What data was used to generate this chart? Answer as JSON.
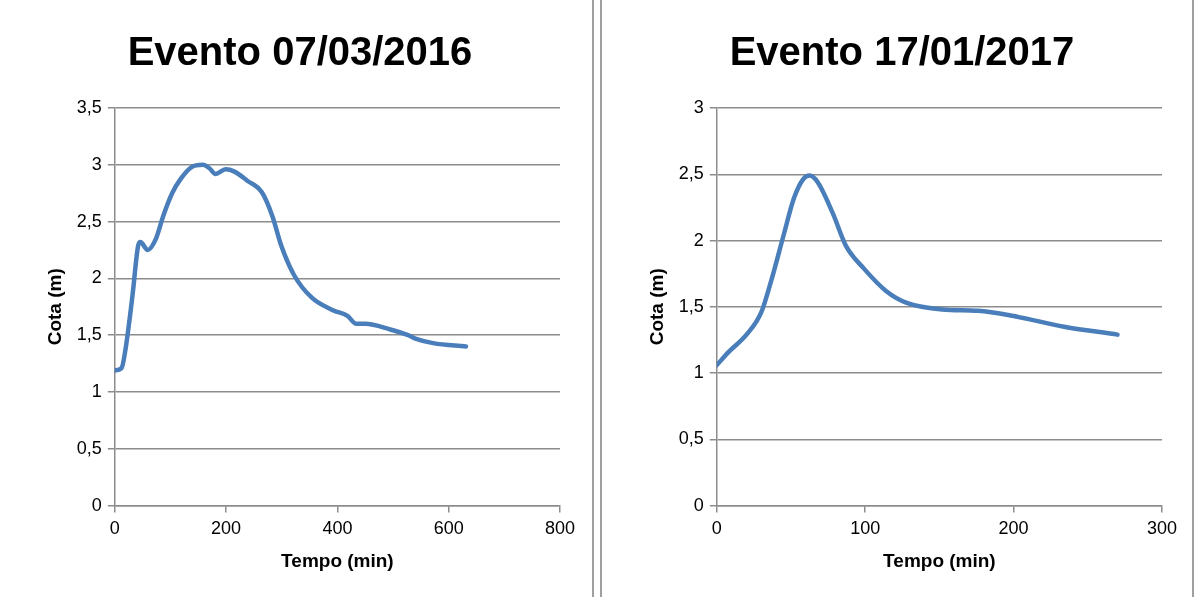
{
  "chart_data": [
    {
      "type": "line",
      "title": "Evento 07/03/2016",
      "xlabel": "Tempo (min)",
      "ylabel": "Cota (m)",
      "grid": "y",
      "marker": "none",
      "line_style": "solid",
      "legend": false,
      "xlim": [
        0,
        800
      ],
      "xticks": [
        0,
        200,
        400,
        600,
        800
      ],
      "ylim": [
        0,
        3.5
      ],
      "yticks": [
        0,
        {
          "value": 0.5,
          "label": "0,5"
        },
        1,
        {
          "value": 1.5,
          "label": "1,5"
        },
        2,
        {
          "value": 2.5,
          "label": "2,5"
        },
        3,
        {
          "value": 3.5,
          "label": "3,5"
        }
      ],
      "series": [
        {
          "color": "#4a7ebb",
          "x": [
            0,
            12,
            19,
            32,
            42,
            46,
            59,
            74,
            87,
            103,
            119,
            138,
            158,
            170,
            181,
            199,
            215,
            238,
            264,
            283,
            299,
            322,
            354,
            392,
            418,
            434,
            450,
            495,
            527,
            540,
            572,
            631
          ],
          "values": [
            1.19,
            1.21,
            1.37,
            1.86,
            2.29,
            2.32,
            2.25,
            2.35,
            2.55,
            2.75,
            2.88,
            2.98,
            3.0,
            2.97,
            2.92,
            2.96,
            2.94,
            2.86,
            2.76,
            2.55,
            2.29,
            2.03,
            1.83,
            1.72,
            1.67,
            1.6,
            1.6,
            1.55,
            1.5,
            1.47,
            1.43,
            1.4
          ]
        }
      ]
    },
    {
      "type": "line",
      "title": "Evento 17/01/2017",
      "xlabel": "Tempo (min)",
      "ylabel": "Cota (m)",
      "grid": "y",
      "marker": "none",
      "line_style": "solid",
      "legend": false,
      "xlim": [
        0,
        300
      ],
      "xticks": [
        0,
        100,
        200,
        300
      ],
      "ylim": [
        0,
        3
      ],
      "yticks": [
        0,
        {
          "value": 0.5,
          "label": "0,5"
        },
        1,
        {
          "value": 1.5,
          "label": "1,5"
        },
        2,
        {
          "value": 2.5,
          "label": "2,5"
        },
        3
      ],
      "series": [
        {
          "color": "#4a7ebb",
          "x": [
            0,
            8,
            20,
            30,
            37,
            45,
            52,
            58,
            62.5,
            68,
            78,
            87,
            99,
            114,
            128,
            152,
            176,
            200,
            234,
            270
          ],
          "values": [
            1.06,
            1.16,
            1.29,
            1.46,
            1.71,
            2.04,
            2.32,
            2.46,
            2.49,
            2.44,
            2.21,
            1.96,
            1.79,
            1.62,
            1.53,
            1.48,
            1.47,
            1.43,
            1.35,
            1.29
          ]
        }
      ]
    }
  ]
}
